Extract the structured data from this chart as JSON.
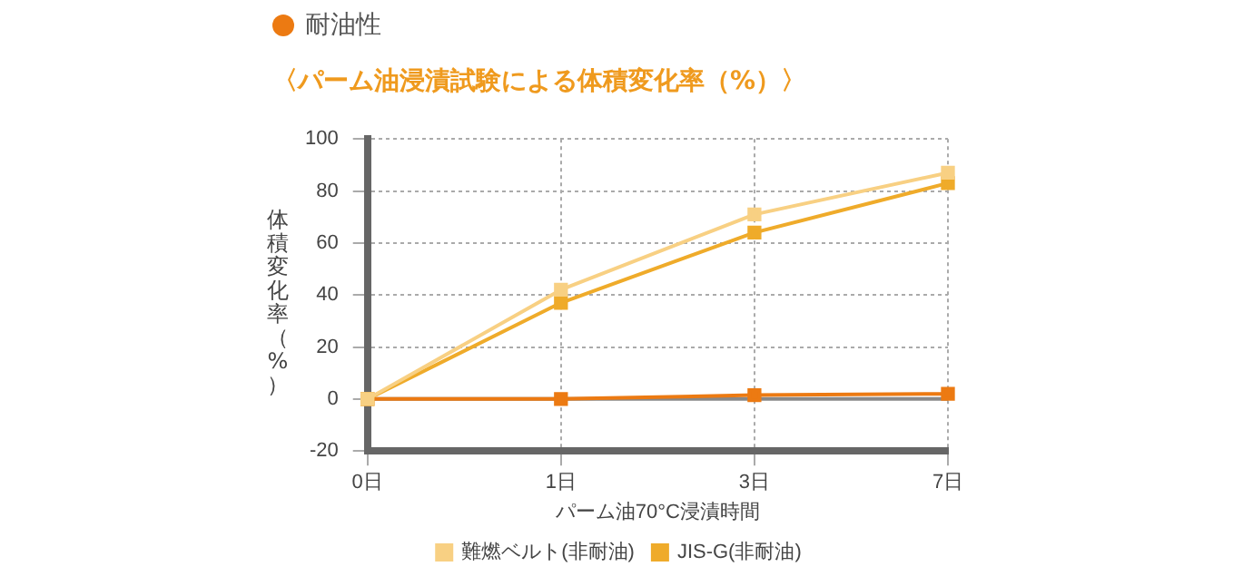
{
  "chart_data": {
    "type": "line",
    "subtitle": "耐油性",
    "title": "〈パーム油浸漬試験による体積変化率（%）〉",
    "xlabel": "パーム油70°C浸漬時間",
    "ylabel": "体積変化率（%）",
    "categories": [
      "0日",
      "1日",
      "3日",
      "7日"
    ],
    "series": [
      {
        "name": "難燃ベルト(非耐油)",
        "color": "#f8d083",
        "values": [
          0,
          42,
          71,
          87
        ]
      },
      {
        "name": "JIS-G(非耐油)",
        "color": "#efab2a",
        "values": [
          0,
          37,
          64,
          83
        ]
      },
      {
        "color": "#ec7a12",
        "values": [
          0,
          0,
          1.5,
          2
        ]
      }
    ],
    "ylim": [
      -20,
      100
    ],
    "yticks": [
      -20,
      0,
      20,
      40,
      60,
      80,
      100
    ],
    "grid": true,
    "legend": "bottom",
    "marker": "square",
    "line_style": "solid",
    "ref_lines": [
      {
        "axis": "y",
        "value": 0,
        "color": "#888888"
      }
    ]
  }
}
